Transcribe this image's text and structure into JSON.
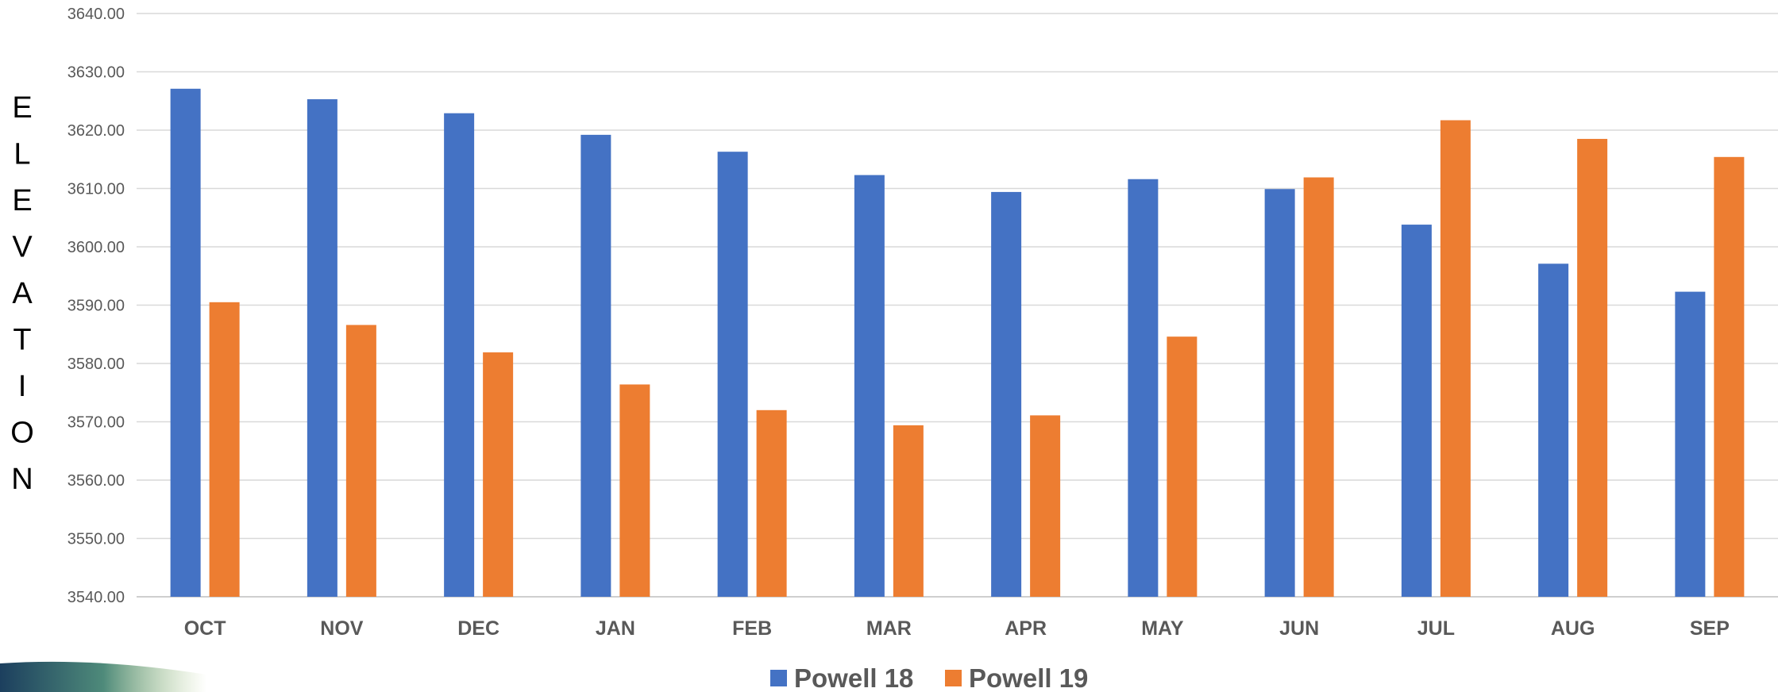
{
  "chart_data": {
    "type": "bar",
    "ylabel": "ELEVATION",
    "xlabel": "",
    "ylim": [
      3540,
      3640
    ],
    "ytick_step": 10,
    "ytick_labels": [
      "3540.00",
      "3550.00",
      "3560.00",
      "3570.00",
      "3580.00",
      "3590.00",
      "3600.00",
      "3610.00",
      "3620.00",
      "3630.00",
      "3640.00"
    ],
    "grid": true,
    "legend_position": "bottom-center",
    "categories": [
      "OCT",
      "NOV",
      "DEC",
      "JAN",
      "FEB",
      "MAR",
      "APR",
      "MAY",
      "JUN",
      "JUL",
      "AUG",
      "SEP"
    ],
    "series": [
      {
        "name": "Powell 18",
        "color": "#4472C4",
        "values": [
          3627.1,
          3625.3,
          3622.9,
          3619.2,
          3616.3,
          3612.3,
          3609.4,
          3611.6,
          3609.9,
          3603.8,
          3597.1,
          3592.3
        ]
      },
      {
        "name": "Powell 19",
        "color": "#ED7D31",
        "values": [
          3590.5,
          3586.6,
          3581.9,
          3576.4,
          3572.0,
          3569.4,
          3571.1,
          3584.6,
          3611.9,
          3621.7,
          3618.5,
          3615.4
        ]
      }
    ]
  }
}
